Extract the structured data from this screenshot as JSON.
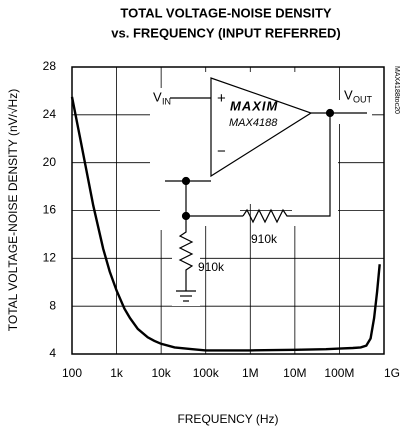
{
  "chart_data": {
    "type": "line",
    "title": [
      "TOTAL VOLTAGE-NOISE DENSITY",
      "vs. FREQUENCY (INPUT REFERRED)"
    ],
    "xlabel": "FREQUENCY (Hz)",
    "ylabel": "TOTAL VOLTAGE-NOISE DENSITY (nV/√Hz)",
    "x": [
      100,
      150,
      200,
      300,
      500,
      700,
      1000,
      1500,
      2000,
      3000,
      5000,
      7000,
      10000,
      20000,
      50000,
      100000,
      1000000,
      10000000,
      50000000,
      100000000,
      200000000,
      300000000,
      400000000,
      500000000,
      600000000,
      700000000,
      800000000
    ],
    "series": [
      {
        "name": "noise",
        "color": "#000000",
        "values": [
          25.5,
          22.2,
          19.8,
          16.4,
          12.8,
          10.9,
          9.3,
          7.8,
          7,
          6.1,
          5.4,
          5.1,
          4.85,
          4.55,
          4.4,
          4.3,
          4.3,
          4.35,
          4.4,
          4.45,
          4.5,
          4.55,
          4.7,
          5.3,
          7,
          9.2,
          11.5
        ]
      }
    ],
    "xlim": [
      100,
      1000000000
    ],
    "xticks": [
      100,
      {
        "value": 1000,
        "label": "1k"
      },
      {
        "value": 10000,
        "label": "10k"
      },
      {
        "value": 100000,
        "label": "100k"
      },
      {
        "value": 1000000,
        "label": "1M"
      },
      {
        "value": 10000000,
        "label": "10M"
      },
      {
        "value": 100000000,
        "label": "100M"
      },
      {
        "value": 1000000000,
        "label": "1G"
      }
    ],
    "ylim": [
      4,
      28
    ],
    "yticks": [
      4,
      8,
      12,
      16,
      20,
      24,
      28
    ],
    "log_x": true,
    "grid": true,
    "annotations": [
      "V",
      "IN",
      "V",
      "OUT",
      "+",
      "−",
      "MAXIM",
      "MAX4188",
      "910k",
      "910k",
      "MAX4188toc20"
    ]
  }
}
